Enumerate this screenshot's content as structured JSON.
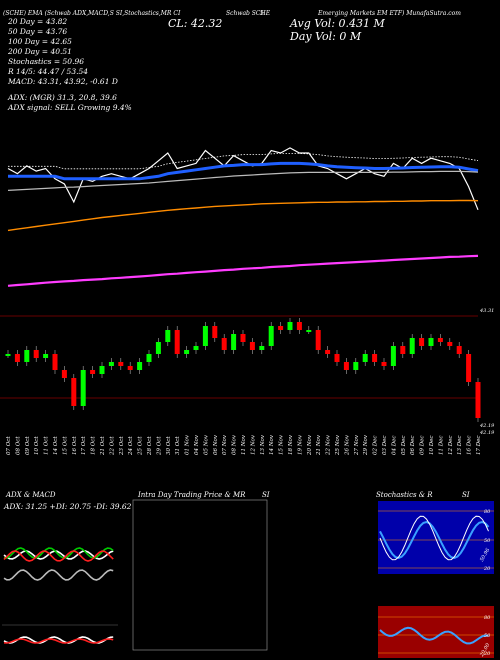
{
  "header": {
    "left": "(SCHE) EMA (Schwab ADX,MACD,S SI,Stochastics,MR CI",
    "mid": "Schwab SCHE",
    "num": "5",
    "right": "Emerging Markets EM ETF) MunafaSutra.com"
  },
  "stats": {
    "ma20": "20 Day = 43.82",
    "ma50": "50 Day = 43.76",
    "ma100": "100 Day = 42.65",
    "ma200": "200 Day = 40.51",
    "stoch": "Stochastics = 50.96",
    "r": "R 14/5: 44.47 / 53.54",
    "macd": "MACD: 43.31, 43.92, -0.61 D",
    "adx": "ADX: (MGR) 31.3, 20.8, 39.6",
    "adx_signal": "ADX signal: SELL Growing 9.4%"
  },
  "price": {
    "cl_label": "CL: 42.32",
    "avg_vol": "Avg Vol: 0.431 M",
    "day_vol": "Day Vol: 0 M"
  },
  "candle_axis": {
    "top_label": "43.31",
    "bottom_label": "42.19",
    "bottom_label2": "42.19"
  },
  "dates": [
    "07 Oct",
    "08 Oct",
    "09 Oct",
    "10 Oct",
    "11 Oct",
    "14 Oct",
    "15 Oct",
    "16 Oct",
    "17 Oct",
    "18 Oct",
    "21 Oct",
    "22 Oct",
    "23 Oct",
    "24 Oct",
    "25 Oct",
    "28 Oct",
    "29 Oct",
    "30 Oct",
    "31 Oct",
    "01 Nov",
    "04 Nov",
    "05 Nov",
    "06 Nov",
    "07 Nov",
    "08 Nov",
    "11 Nov",
    "12 Nov",
    "13 Nov",
    "14 Nov",
    "15 Nov",
    "18 Nov",
    "19 Nov",
    "20 Nov",
    "21 Nov",
    "22 Nov",
    "25 Nov",
    "26 Nov",
    "27 Nov",
    "29 Nov",
    "02 Dec",
    "03 Dec",
    "04 Dec",
    "05 Dec",
    "06 Dec",
    "09 Dec",
    "10 Dec",
    "11 Dec",
    "12 Dec",
    "13 Dec",
    "16 Dec",
    "17 Dec"
  ],
  "panels": {
    "adx_title": "ADX & MACD",
    "adx_values": "ADX: 31.25 +DI: 20.75 -DI: 39.62",
    "intraday_title": "Intra Day Trading Price & MR",
    "intraday_si": "SI",
    "stoch_title": "Stochastics & R",
    "stoch_si": "SI",
    "stoch_levels": [
      "80",
      "50",
      "20"
    ],
    "stoch_last": "50.96",
    "si_levels": [
      "80",
      "50",
      "20"
    ],
    "si_last": "20.00"
  },
  "colors": {
    "up": "#00ff00",
    "down": "#ff0000",
    "ema_blue": "#1f5fff",
    "ema_orange": "#ff8c00",
    "ema_magenta": "#ff3cff",
    "price_line": "#ffffff"
  },
  "chart_data": [
    {
      "type": "line",
      "title": "Price with EMAs",
      "x": [
        "07 Oct",
        "08 Oct",
        "09 Oct",
        "10 Oct",
        "11 Oct",
        "14 Oct",
        "15 Oct",
        "16 Oct",
        "17 Oct",
        "18 Oct",
        "21 Oct",
        "22 Oct",
        "23 Oct",
        "24 Oct",
        "25 Oct",
        "28 Oct",
        "29 Oct",
        "30 Oct",
        "31 Oct",
        "01 Nov",
        "04 Nov",
        "05 Nov",
        "06 Nov",
        "07 Nov",
        "08 Nov",
        "11 Nov",
        "12 Nov",
        "13 Nov",
        "14 Nov",
        "15 Nov",
        "18 Nov",
        "19 Nov",
        "20 Nov",
        "21 Nov",
        "22 Nov",
        "25 Nov",
        "26 Nov",
        "27 Nov",
        "29 Nov",
        "02 Dec",
        "03 Dec",
        "04 Dec",
        "05 Dec",
        "06 Dec",
        "09 Dec",
        "10 Dec",
        "11 Dec",
        "12 Dec",
        "13 Dec",
        "16 Dec",
        "17 Dec"
      ],
      "series": [
        {
          "name": "Close",
          "values": [
            43.9,
            43.7,
            44.0,
            43.8,
            43.9,
            43.5,
            43.3,
            42.6,
            43.5,
            43.4,
            43.6,
            43.7,
            43.6,
            43.5,
            43.7,
            43.9,
            44.2,
            44.5,
            43.9,
            44.0,
            44.1,
            44.6,
            44.3,
            44.0,
            44.4,
            44.2,
            44.0,
            44.1,
            44.6,
            44.5,
            44.7,
            44.5,
            44.5,
            44.0,
            43.9,
            43.7,
            43.5,
            43.7,
            43.9,
            43.7,
            43.6,
            44.1,
            43.9,
            44.3,
            44.1,
            44.3,
            44.2,
            44.1,
            43.9,
            43.2,
            42.3
          ]
        },
        {
          "name": "EMA 20",
          "values": [
            43.6,
            43.6,
            43.6,
            43.6,
            43.6,
            43.6,
            43.5,
            43.5,
            43.5,
            43.5,
            43.5,
            43.5,
            43.5,
            43.5,
            43.5,
            43.55,
            43.6,
            43.7,
            43.75,
            43.8,
            43.85,
            43.9,
            43.95,
            44.0,
            44.02,
            44.05,
            44.05,
            44.05,
            44.08,
            44.1,
            44.1,
            44.1,
            44.08,
            44.05,
            44.0,
            43.97,
            43.95,
            43.93,
            43.92,
            43.9,
            43.9,
            43.91,
            43.92,
            43.94,
            43.95,
            43.96,
            43.97,
            43.97,
            43.95,
            43.88,
            43.82
          ]
        },
        {
          "name": "EMA 50",
          "values": [
            43.05,
            43.07,
            43.09,
            43.11,
            43.13,
            43.15,
            43.17,
            43.18,
            43.2,
            43.22,
            43.24,
            43.26,
            43.28,
            43.3,
            43.32,
            43.34,
            43.37,
            43.4,
            43.43,
            43.46,
            43.49,
            43.52,
            43.55,
            43.58,
            43.61,
            43.63,
            43.65,
            43.67,
            43.69,
            43.71,
            43.73,
            43.74,
            43.75,
            43.75,
            43.75,
            43.75,
            43.75,
            43.75,
            43.75,
            43.75,
            43.75,
            43.76,
            43.76,
            43.77,
            43.78,
            43.78,
            43.79,
            43.79,
            43.79,
            43.78,
            43.76
          ]
        },
        {
          "name": "EMA 100",
          "values": [
            41.5,
            41.55,
            41.6,
            41.65,
            41.7,
            41.75,
            41.8,
            41.85,
            41.9,
            41.95,
            42.0,
            42.04,
            42.08,
            42.12,
            42.16,
            42.2,
            42.24,
            42.28,
            42.31,
            42.34,
            42.37,
            42.4,
            42.43,
            42.45,
            42.47,
            42.49,
            42.51,
            42.53,
            42.54,
            42.55,
            42.56,
            42.57,
            42.58,
            42.59,
            42.59,
            42.6,
            42.6,
            42.61,
            42.61,
            42.62,
            42.62,
            42.63,
            42.63,
            42.64,
            42.64,
            42.65,
            42.65,
            42.65,
            42.66,
            42.66,
            42.65
          ]
        },
        {
          "name": "EMA 200",
          "values": [
            39.35,
            39.38,
            39.41,
            39.44,
            39.47,
            39.5,
            39.52,
            39.54,
            39.57,
            39.59,
            39.61,
            39.64,
            39.66,
            39.69,
            39.71,
            39.74,
            39.77,
            39.8,
            39.82,
            39.85,
            39.88,
            39.9,
            39.93,
            39.96,
            39.98,
            40.01,
            40.03,
            40.05,
            40.08,
            40.1,
            40.12,
            40.15,
            40.17,
            40.19,
            40.21,
            40.23,
            40.25,
            40.27,
            40.29,
            40.31,
            40.33,
            40.35,
            40.37,
            40.39,
            40.41,
            40.43,
            40.45,
            40.47,
            40.48,
            40.5,
            40.51
          ]
        }
      ]
    },
    {
      "type": "bar",
      "title": "Candles",
      "x": [
        "07 Oct",
        "08 Oct",
        "09 Oct",
        "10 Oct",
        "11 Oct",
        "14 Oct",
        "15 Oct",
        "16 Oct",
        "17 Oct",
        "18 Oct",
        "21 Oct",
        "22 Oct",
        "23 Oct",
        "24 Oct",
        "25 Oct",
        "28 Oct",
        "29 Oct",
        "30 Oct",
        "31 Oct",
        "01 Nov",
        "04 Nov",
        "05 Nov",
        "06 Nov",
        "07 Nov",
        "08 Nov",
        "11 Nov",
        "12 Nov",
        "13 Nov",
        "14 Nov",
        "15 Nov",
        "18 Nov",
        "19 Nov",
        "20 Nov",
        "21 Nov",
        "22 Nov",
        "25 Nov",
        "26 Nov",
        "27 Nov",
        "29 Nov",
        "02 Dec",
        "03 Dec",
        "04 Dec",
        "05 Dec",
        "06 Dec",
        "09 Dec",
        "10 Dec",
        "11 Dec",
        "12 Dec",
        "13 Dec",
        "16 Dec",
        "17 Dec"
      ],
      "ylim": [
        42.1,
        43.4
      ]
    }
  ]
}
